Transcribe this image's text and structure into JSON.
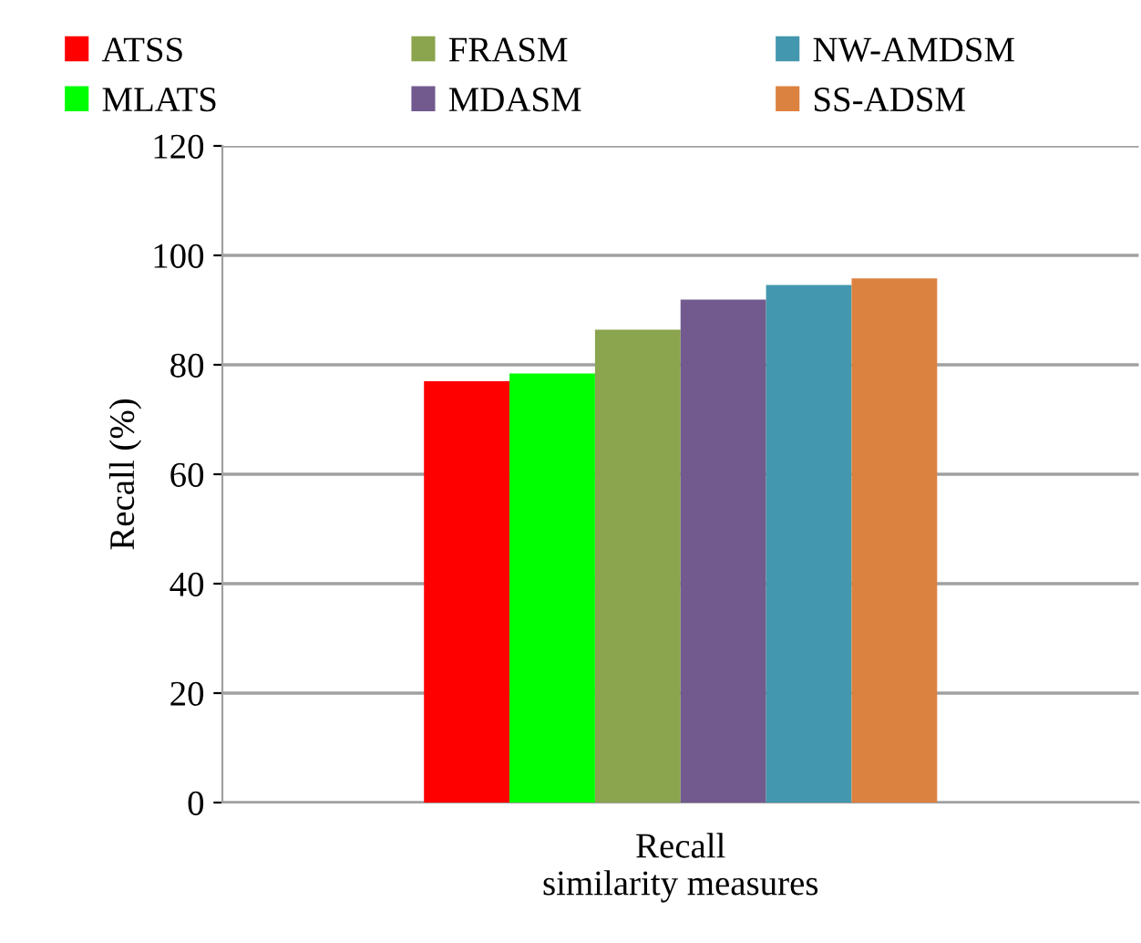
{
  "chart_data": {
    "type": "bar",
    "categories": [
      "Recall"
    ],
    "xlabel": "similarity measures",
    "ylabel": "Recall (%)",
    "ylim": [
      0,
      120
    ],
    "yticks": [
      0,
      20,
      40,
      60,
      80,
      100,
      120
    ],
    "grid": "y",
    "legend": "top",
    "series": [
      {
        "name": "ATSS",
        "color": "#ff0000",
        "values": [
          77
        ]
      },
      {
        "name": "MLATS",
        "color": "#00ff00",
        "values": [
          78.4
        ]
      },
      {
        "name": "FRASM",
        "color": "#8ba44e",
        "values": [
          86.4
        ]
      },
      {
        "name": "MDASM",
        "color": "#725a8e",
        "values": [
          91.9
        ]
      },
      {
        "name": "NW-AMDSM",
        "color": "#4397ae",
        "values": [
          94.6
        ]
      },
      {
        "name": "SS-ADSM",
        "color": "#dc8240",
        "values": [
          95.8
        ]
      }
    ]
  }
}
